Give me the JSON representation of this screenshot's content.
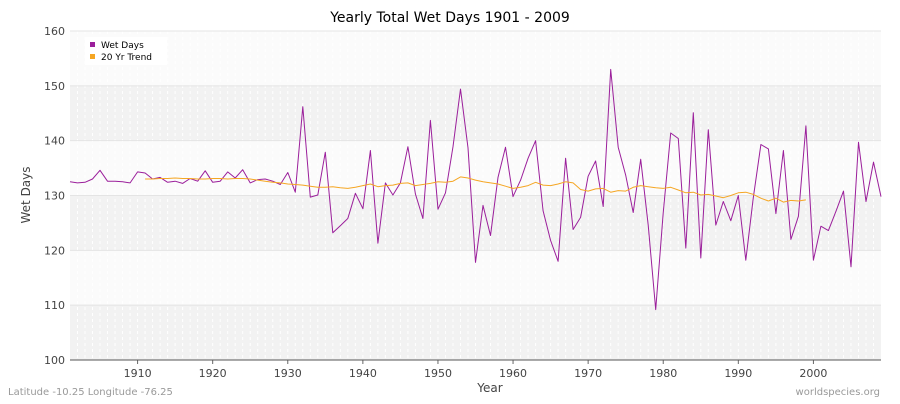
{
  "chart_data": {
    "type": "line",
    "title": "Yearly Total Wet Days 1901 - 2009",
    "xlabel": "Year",
    "ylabel": "Wet Days",
    "xlim": [
      1901,
      2009
    ],
    "ylim": [
      100,
      160
    ],
    "x_ticks": [
      1910,
      1920,
      1930,
      1940,
      1950,
      1960,
      1970,
      1980,
      1990,
      2000
    ],
    "y_ticks": [
      100,
      110,
      120,
      130,
      140,
      150,
      160
    ],
    "grid": true,
    "legend_position": "top-left",
    "series": [
      {
        "name": "Wet Days",
        "color": "#9b1f9b",
        "x": [
          1901,
          1902,
          1903,
          1904,
          1905,
          1906,
          1907,
          1908,
          1909,
          1910,
          1911,
          1912,
          1913,
          1914,
          1915,
          1916,
          1917,
          1918,
          1919,
          1920,
          1921,
          1922,
          1923,
          1924,
          1925,
          1926,
          1927,
          1928,
          1929,
          1930,
          1931,
          1932,
          1933,
          1934,
          1935,
          1936,
          1937,
          1938,
          1939,
          1940,
          1941,
          1942,
          1943,
          1944,
          1945,
          1946,
          1947,
          1948,
          1949,
          1950,
          1951,
          1952,
          1953,
          1954,
          1955,
          1956,
          1957,
          1958,
          1959,
          1960,
          1961,
          1962,
          1963,
          1964,
          1965,
          1966,
          1967,
          1968,
          1969,
          1970,
          1971,
          1972,
          1973,
          1974,
          1975,
          1976,
          1977,
          1978,
          1979,
          1980,
          1981,
          1982,
          1983,
          1984,
          1985,
          1986,
          1987,
          1988,
          1989,
          1990,
          1991,
          1992,
          1993,
          1994,
          1995,
          1996,
          1997,
          1998,
          1999,
          2000,
          2001,
          2002,
          2003,
          2004,
          2005,
          2006,
          2007,
          2008,
          2009
        ],
        "values": [
          132.5,
          132.3,
          132.4,
          133.0,
          134.6,
          132.6,
          132.6,
          132.5,
          132.3,
          134.3,
          134.1,
          133.0,
          133.3,
          132.4,
          132.6,
          132.2,
          133.1,
          132.6,
          134.5,
          132.4,
          132.6,
          134.3,
          133.2,
          134.7,
          132.3,
          132.9,
          133.0,
          132.6,
          132.0,
          134.2,
          130.6,
          146.2,
          129.7,
          130.1,
          137.9,
          123.2,
          124.5,
          125.8,
          130.4,
          127.6,
          138.2,
          121.3,
          132.3,
          130.1,
          132.3,
          138.9,
          130.3,
          125.8,
          143.7,
          127.5,
          130.5,
          138.9,
          149.4,
          138.7,
          117.8,
          128.2,
          122.7,
          133.3,
          138.8,
          129.8,
          132.8,
          136.8,
          140.0,
          127.2,
          121.8,
          118.0,
          136.8,
          123.8,
          126.0,
          133.5,
          136.3,
          128.0,
          153.0,
          138.8,
          133.7,
          126.9,
          136.6,
          124.6,
          109.2,
          126.8,
          141.4,
          140.4,
          120.4,
          145.1,
          118.6,
          142.0,
          124.6,
          128.9,
          125.4,
          130.0,
          118.2,
          129.6,
          139.3,
          138.5,
          126.7,
          138.2,
          122.0,
          126.2,
          142.7,
          118.2,
          124.4,
          123.6,
          127.1,
          130.8,
          117.0,
          139.7,
          128.9,
          136.1,
          129.8
        ]
      },
      {
        "name": "20 Yr Trend",
        "color": "#f5a623",
        "x": [
          1911,
          1912,
          1913,
          1914,
          1915,
          1916,
          1917,
          1918,
          1919,
          1920,
          1921,
          1922,
          1923,
          1924,
          1925,
          1926,
          1927,
          1928,
          1929,
          1930,
          1931,
          1932,
          1933,
          1934,
          1935,
          1936,
          1937,
          1938,
          1939,
          1940,
          1941,
          1942,
          1943,
          1944,
          1945,
          1946,
          1947,
          1948,
          1949,
          1950,
          1951,
          1952,
          1953,
          1954,
          1955,
          1956,
          1957,
          1958,
          1959,
          1960,
          1961,
          1962,
          1963,
          1964,
          1965,
          1966,
          1967,
          1968,
          1969,
          1970,
          1971,
          1972,
          1973,
          1974,
          1975,
          1976,
          1977,
          1978,
          1979,
          1980,
          1981,
          1982,
          1983,
          1984,
          1985,
          1986,
          1987,
          1988,
          1989,
          1990,
          1991,
          1992,
          1993,
          1994,
          1995,
          1996,
          1997,
          1998,
          1999
        ],
        "values": [
          133.0,
          133.0,
          133.1,
          133.1,
          133.2,
          133.1,
          133.1,
          133.0,
          133.0,
          133.1,
          133.1,
          133.0,
          133.1,
          133.1,
          133.0,
          132.8,
          132.6,
          132.4,
          132.3,
          132.1,
          132.0,
          131.9,
          131.7,
          131.5,
          131.5,
          131.6,
          131.4,
          131.3,
          131.5,
          131.8,
          132.1,
          131.6,
          131.8,
          131.9,
          132.2,
          132.3,
          131.8,
          132.0,
          132.2,
          132.5,
          132.4,
          132.6,
          133.4,
          133.2,
          132.8,
          132.5,
          132.3,
          132.1,
          131.7,
          131.3,
          131.5,
          131.8,
          132.4,
          131.9,
          131.8,
          132.1,
          132.5,
          132.3,
          131.1,
          130.8,
          131.2,
          131.3,
          130.6,
          130.9,
          130.8,
          131.5,
          131.8,
          131.6,
          131.4,
          131.3,
          131.5,
          131.0,
          130.5,
          130.6,
          130.1,
          130.2,
          129.9,
          129.6,
          130.0,
          130.5,
          130.6,
          130.2,
          129.5,
          129.0,
          129.5,
          128.8,
          129.1,
          129.0,
          129.2
        ]
      }
    ]
  },
  "footer": {
    "left": "Latitude -10.25 Longitude -76.25",
    "right": "worldspecies.org"
  }
}
